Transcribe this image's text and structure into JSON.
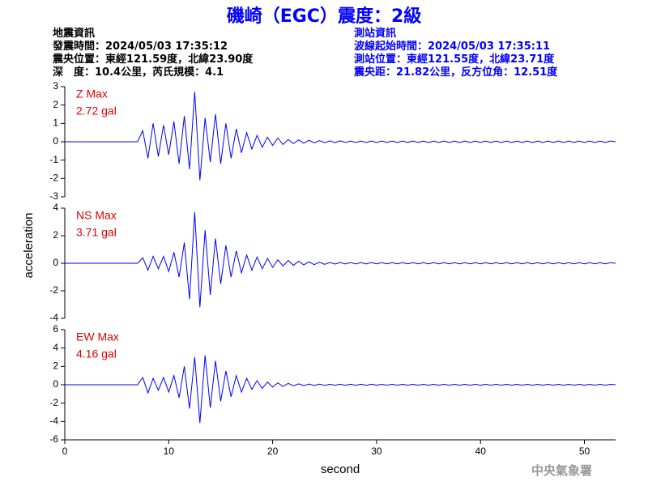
{
  "header": {
    "title": "磯崎（EGC）震度：2級",
    "event": [
      "地震資訊",
      "發震時間：2024/05/03 17:35:12",
      "震央位置：東經121.59度，北緯23.90度",
      "深　度：10.4公里，芮氏規模：4.1"
    ],
    "station": [
      "測站資訊",
      "波線起始時間：2024/05/03 17:35:11",
      "測站位置：東經121.55度，北緯23.71度",
      "震央距：21.82公里，反方位角：12.51度"
    ]
  },
  "y_label": "acceleration",
  "footer": "中央氣象署",
  "chart_data": [
    {
      "type": "line",
      "annotation": [
        "Z Max",
        "2.72 gal"
      ],
      "color": "#0000ff",
      "annotation_color": "#e00000",
      "xlim": [
        0,
        53
      ],
      "ylim": [
        -3,
        3
      ],
      "yticks": [
        -3,
        -2,
        -1,
        0,
        1,
        2,
        3
      ],
      "x": [
        0,
        0.5,
        1,
        1.5,
        2,
        2.5,
        3,
        3.5,
        4,
        4.5,
        5,
        5.5,
        6,
        6.5,
        7,
        7.5,
        8,
        8.5,
        9,
        9.5,
        10,
        10.5,
        11,
        11.5,
        12,
        12.5,
        13,
        13.5,
        14,
        14.5,
        15,
        15.5,
        16,
        16.5,
        17,
        17.5,
        18,
        18.5,
        19,
        19.5,
        20,
        20.5,
        21,
        21.5,
        22,
        22.5,
        23,
        23.5,
        24,
        24.5,
        25,
        25.5,
        26,
        26.5,
        27,
        27.5,
        28,
        28.5,
        29,
        29.5,
        30,
        30.5,
        31,
        31.5,
        32,
        32.5,
        33,
        33.5,
        34,
        34.5,
        35,
        35.5,
        36,
        36.5,
        37,
        37.5,
        38,
        38.5,
        39,
        39.5,
        40,
        40.5,
        41,
        41.5,
        42,
        42.5,
        43,
        43.5,
        44,
        44.5,
        45,
        45.5,
        46,
        46.5,
        47,
        47.5,
        48,
        48.5,
        49,
        49.5,
        50,
        50.5,
        51,
        51.5,
        52,
        52.5,
        53
      ],
      "values": [
        0,
        0,
        0,
        0,
        0,
        0,
        0,
        0,
        0,
        0,
        0,
        0,
        0,
        0,
        0,
        0.6,
        -0.9,
        1.0,
        -0.8,
        0.9,
        -0.7,
        1.1,
        -1.2,
        1.4,
        -1.5,
        2.72,
        -2.1,
        1.3,
        -1.1,
        1.5,
        -1.2,
        1.0,
        -0.9,
        0.7,
        -0.6,
        0.5,
        -0.4,
        0.35,
        -0.3,
        0.25,
        -0.2,
        0.2,
        -0.15,
        0.12,
        -0.1,
        0.1,
        -0.08,
        0.08,
        -0.06,
        0.06,
        -0.05,
        0.05,
        -0.05,
        0.05,
        -0.04,
        0.04,
        -0.04,
        0.04,
        -0.04,
        0.04,
        -0.04,
        0.04,
        -0.04,
        0.04,
        -0.04,
        0.04,
        -0.04,
        0.04,
        -0.04,
        0.04,
        -0.04,
        0.04,
        -0.04,
        0.04,
        -0.04,
        0.04,
        -0.04,
        0.04,
        -0.04,
        0.04,
        -0.04,
        0.04,
        -0.04,
        0.04,
        -0.04,
        0.04,
        -0.04,
        0.04,
        -0.04,
        0.04,
        -0.04,
        0.04,
        -0.04,
        0.04,
        -0.04,
        0.04,
        -0.04,
        0.04,
        -0.04,
        0.04,
        -0.04,
        0.04,
        -0.04,
        0.04,
        -0.04,
        0.04,
        0
      ]
    },
    {
      "type": "line",
      "annotation": [
        "NS Max",
        "3.71 gal"
      ],
      "color": "#0000ff",
      "annotation_color": "#e00000",
      "xlim": [
        0,
        53
      ],
      "ylim": [
        -4,
        4
      ],
      "yticks": [
        -4,
        -2,
        0,
        2,
        4
      ],
      "x": [
        0,
        0.5,
        1,
        1.5,
        2,
        2.5,
        3,
        3.5,
        4,
        4.5,
        5,
        5.5,
        6,
        6.5,
        7,
        7.5,
        8,
        8.5,
        9,
        9.5,
        10,
        10.5,
        11,
        11.5,
        12,
        12.5,
        13,
        13.5,
        14,
        14.5,
        15,
        15.5,
        16,
        16.5,
        17,
        17.5,
        18,
        18.5,
        19,
        19.5,
        20,
        20.5,
        21,
        21.5,
        22,
        22.5,
        23,
        23.5,
        24,
        24.5,
        25,
        25.5,
        26,
        26.5,
        27,
        27.5,
        28,
        28.5,
        29,
        29.5,
        30,
        30.5,
        31,
        31.5,
        32,
        32.5,
        33,
        33.5,
        34,
        34.5,
        35,
        35.5,
        36,
        36.5,
        37,
        37.5,
        38,
        38.5,
        39,
        39.5,
        40,
        40.5,
        41,
        41.5,
        42,
        42.5,
        43,
        43.5,
        44,
        44.5,
        45,
        45.5,
        46,
        46.5,
        47,
        47.5,
        48,
        48.5,
        49,
        49.5,
        50,
        50.5,
        51,
        51.5,
        52,
        52.5,
        53
      ],
      "values": [
        0,
        0,
        0,
        0,
        0,
        0,
        0,
        0,
        0,
        0,
        0,
        0,
        0,
        0,
        0,
        0.4,
        -0.5,
        0.5,
        -0.4,
        0.5,
        -0.6,
        0.8,
        -1.0,
        1.5,
        -2.6,
        3.71,
        -3.2,
        2.4,
        -2.3,
        1.8,
        -1.5,
        1.3,
        -1.0,
        0.9,
        -0.7,
        0.6,
        -0.5,
        0.45,
        -0.4,
        0.35,
        -0.3,
        0.25,
        -0.2,
        0.2,
        -0.15,
        0.15,
        -0.12,
        0.1,
        -0.1,
        0.08,
        -0.08,
        0.06,
        -0.06,
        0.05,
        -0.05,
        0.05,
        -0.05,
        0.05,
        -0.05,
        0.05,
        -0.04,
        0.04,
        -0.04,
        0.04,
        -0.04,
        0.04,
        -0.04,
        0.04,
        -0.04,
        0.04,
        -0.04,
        0.04,
        -0.04,
        0.04,
        -0.04,
        0.04,
        -0.04,
        0.04,
        -0.04,
        0.04,
        -0.04,
        0.04,
        -0.04,
        0.04,
        -0.04,
        0.04,
        -0.04,
        0.04,
        -0.04,
        0.04,
        -0.04,
        0.04,
        -0.04,
        0.04,
        -0.04,
        0.04,
        -0.04,
        0.04,
        -0.04,
        0.04,
        -0.04,
        0.04,
        -0.04,
        0.04,
        -0.04,
        0.04,
        0
      ]
    },
    {
      "type": "line",
      "annotation": [
        "EW Max",
        "4.16 gal"
      ],
      "color": "#0000ff",
      "annotation_color": "#e00000",
      "xlim": [
        0,
        53
      ],
      "ylim": [
        -6,
        6
      ],
      "yticks": [
        -6,
        -4,
        -2,
        0,
        2,
        4,
        6
      ],
      "xticks": [
        0,
        10,
        20,
        30,
        40,
        50
      ],
      "x_label": "second",
      "x": [
        0,
        0.5,
        1,
        1.5,
        2,
        2.5,
        3,
        3.5,
        4,
        4.5,
        5,
        5.5,
        6,
        6.5,
        7,
        7.5,
        8,
        8.5,
        9,
        9.5,
        10,
        10.5,
        11,
        11.5,
        12,
        12.5,
        13,
        13.5,
        14,
        14.5,
        15,
        15.5,
        16,
        16.5,
        17,
        17.5,
        18,
        18.5,
        19,
        19.5,
        20,
        20.5,
        21,
        21.5,
        22,
        22.5,
        23,
        23.5,
        24,
        24.5,
        25,
        25.5,
        26,
        26.5,
        27,
        27.5,
        28,
        28.5,
        29,
        29.5,
        30,
        30.5,
        31,
        31.5,
        32,
        32.5,
        33,
        33.5,
        34,
        34.5,
        35,
        35.5,
        36,
        36.5,
        37,
        37.5,
        38,
        38.5,
        39,
        39.5,
        40,
        40.5,
        41,
        41.5,
        42,
        42.5,
        43,
        43.5,
        44,
        44.5,
        45,
        45.5,
        46,
        46.5,
        47,
        47.5,
        48,
        48.5,
        49,
        49.5,
        50,
        50.5,
        51,
        51.5,
        52,
        52.5,
        53
      ],
      "values": [
        0,
        0,
        0,
        0,
        0,
        0,
        0,
        0,
        0,
        0,
        0,
        0,
        0,
        0,
        0,
        0.8,
        -0.9,
        0.7,
        -0.6,
        0.8,
        -0.8,
        1.0,
        -1.4,
        2.0,
        -2.6,
        3.0,
        -4.16,
        3.2,
        -2.5,
        2.6,
        -1.8,
        1.5,
        -1.3,
        1.0,
        -0.8,
        0.7,
        -0.5,
        0.45,
        -0.4,
        0.3,
        -0.25,
        0.2,
        -0.18,
        0.15,
        -0.12,
        0.1,
        -0.1,
        0.08,
        -0.08,
        0.06,
        -0.06,
        0.05,
        -0.05,
        0.05,
        -0.05,
        0.05,
        -0.05,
        0.05,
        -0.05,
        0.05,
        -0.04,
        0.04,
        -0.04,
        0.04,
        -0.04,
        0.04,
        -0.04,
        0.04,
        -0.04,
        0.04,
        -0.04,
        0.04,
        -0.04,
        0.04,
        -0.04,
        0.04,
        -0.04,
        0.04,
        -0.04,
        0.04,
        -0.04,
        0.04,
        -0.04,
        0.04,
        -0.04,
        0.04,
        -0.04,
        0.04,
        -0.04,
        0.04,
        -0.04,
        0.04,
        -0.04,
        0.04,
        -0.04,
        0.04,
        -0.04,
        0.04,
        -0.04,
        0.04,
        -0.04,
        0.04,
        -0.04,
        0.04,
        -0.04,
        0.04,
        0
      ]
    }
  ]
}
